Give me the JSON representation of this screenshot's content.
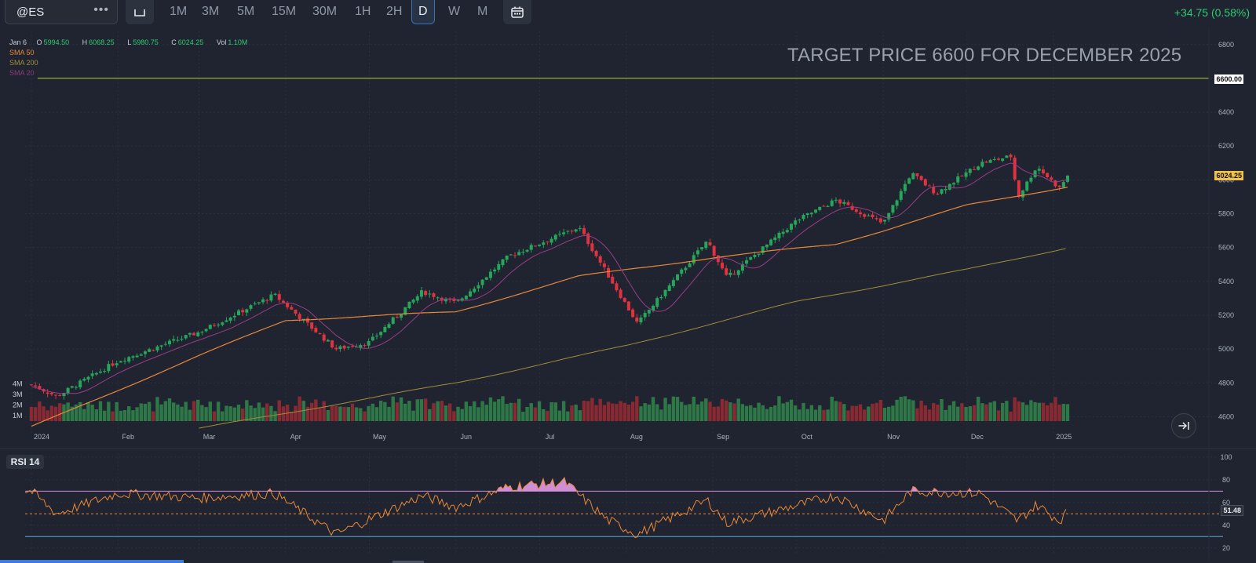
{
  "toolbar": {
    "symbol": "@ES",
    "more": "•••",
    "timeframes": [
      "1M",
      "3M",
      "5M",
      "15M",
      "30M",
      "1H",
      "2H",
      "D",
      "W",
      "M"
    ],
    "active_timeframe": "D",
    "change": "+34.75 (0.58%)"
  },
  "legend": {
    "date": "Jan 6",
    "open_label": "O",
    "open": "5994.50",
    "high_label": "H",
    "high": "6068.25",
    "low_label": "L",
    "low": "5980.75",
    "close_label": "C",
    "close": "6024.25",
    "vol_label": "Vol",
    "vol": "1.10M",
    "studies": [
      {
        "name": "SMA 50",
        "color": "#e8883a"
      },
      {
        "name": "SMA 200",
        "color": "#a38c3a"
      },
      {
        "name": "SMA 20",
        "color": "#8e3a7a"
      }
    ]
  },
  "annotation": "TARGET PRICE  6600 FOR DECEMBER 2025",
  "price_tags": {
    "target": "6600.00",
    "last": "6024.25",
    "rsi": "51.48"
  },
  "rsi_label": "RSI 14",
  "colors": {
    "up": "#26a65b",
    "down": "#e0323f",
    "sma20": "#9a3d88",
    "sma50": "#e8883a",
    "sma200": "#a38c3a",
    "target_line": "#b5d334",
    "rsi_line": "#e8883a",
    "rsi_upper": "#d48be0",
    "rsi_lower": "#55a8d8",
    "rsi_overbought_fill": "#e39be8"
  },
  "chart_data": {
    "type": "candlestick",
    "symbol": "@ES",
    "interval": "D",
    "y_ticks": [
      4600,
      4800,
      5000,
      5200,
      5400,
      5600,
      5800,
      6000,
      6200,
      6400,
      6600,
      6800
    ],
    "y_range": [
      4500,
      6850
    ],
    "x_labels": [
      "2024",
      "Feb",
      "Mar",
      "Apr",
      "May",
      "Jun",
      "Jul",
      "Aug",
      "Sep",
      "Oct",
      "Nov",
      "Dec",
      "2025"
    ],
    "volume_ticks": [
      "1M",
      "2M",
      "3M",
      "4M"
    ],
    "target_price": 6600,
    "last_close": 6024.25,
    "price_path": [
      {
        "date": "2024-01-01",
        "close": 4790
      },
      {
        "date": "2024-01-10",
        "close": 4720
      },
      {
        "date": "2024-02-01",
        "close": 4930
      },
      {
        "date": "2024-03-01",
        "close": 5100
      },
      {
        "date": "2024-03-28",
        "close": 5320
      },
      {
        "date": "2024-04-19",
        "close": 5000
      },
      {
        "date": "2024-05-01",
        "close": 5040
      },
      {
        "date": "2024-05-20",
        "close": 5340
      },
      {
        "date": "2024-06-01",
        "close": 5270
      },
      {
        "date": "2024-06-20",
        "close": 5550
      },
      {
        "date": "2024-07-15",
        "close": 5720
      },
      {
        "date": "2024-08-05",
        "close": 5150
      },
      {
        "date": "2024-08-30",
        "close": 5640
      },
      {
        "date": "2024-09-06",
        "close": 5420
      },
      {
        "date": "2024-10-01",
        "close": 5760
      },
      {
        "date": "2024-10-15",
        "close": 5880
      },
      {
        "date": "2024-11-01",
        "close": 5740
      },
      {
        "date": "2024-11-11",
        "close": 6040
      },
      {
        "date": "2024-11-20",
        "close": 5920
      },
      {
        "date": "2024-12-06",
        "close": 6100
      },
      {
        "date": "2024-12-17",
        "close": 6140
      },
      {
        "date": "2024-12-19",
        "close": 5890
      },
      {
        "date": "2024-12-26",
        "close": 6080
      },
      {
        "date": "2025-01-03",
        "close": 5950
      },
      {
        "date": "2025-01-06",
        "close": 6024.25
      }
    ],
    "sma50_path": [
      {
        "date": "2024-01-01",
        "value": 4540
      },
      {
        "date": "2024-03-01",
        "value": 4960
      },
      {
        "date": "2024-04-01",
        "value": 5170
      },
      {
        "date": "2024-06-01",
        "value": 5220
      },
      {
        "date": "2024-07-15",
        "value": 5430
      },
      {
        "date": "2024-09-01",
        "value": 5540
      },
      {
        "date": "2024-10-15",
        "value": 5620
      },
      {
        "date": "2024-11-01",
        "value": 5700
      },
      {
        "date": "2024-12-01",
        "value": 5850
      },
      {
        "date": "2025-01-06",
        "value": 5960
      }
    ],
    "sma200_path": [
      {
        "date": "2024-03-01",
        "value": 4530
      },
      {
        "date": "2024-06-01",
        "value": 4800
      },
      {
        "date": "2024-08-01",
        "value": 5020
      },
      {
        "date": "2024-10-01",
        "value": 5280
      },
      {
        "date": "2024-12-01",
        "value": 5470
      },
      {
        "date": "2025-01-06",
        "value": 5600
      }
    ],
    "rsi": {
      "period": 14,
      "y_ticks": [
        20,
        40,
        60,
        80,
        100
      ],
      "y_range": [
        15,
        102
      ],
      "overbought": 70,
      "oversold": 30,
      "midline": 50,
      "last": 51.48,
      "path": [
        {
          "date": "2024-01-01",
          "value": 70
        },
        {
          "date": "2024-01-10",
          "value": 50
        },
        {
          "date": "2024-02-01",
          "value": 68
        },
        {
          "date": "2024-03-01",
          "value": 64
        },
        {
          "date": "2024-03-28",
          "value": 68
        },
        {
          "date": "2024-04-19",
          "value": 32
        },
        {
          "date": "2024-05-20",
          "value": 66
        },
        {
          "date": "2024-06-01",
          "value": 56
        },
        {
          "date": "2024-06-20",
          "value": 74
        },
        {
          "date": "2024-07-10",
          "value": 78
        },
        {
          "date": "2024-07-25",
          "value": 45
        },
        {
          "date": "2024-08-05",
          "value": 32
        },
        {
          "date": "2024-08-30",
          "value": 62
        },
        {
          "date": "2024-09-06",
          "value": 42
        },
        {
          "date": "2024-10-15",
          "value": 66
        },
        {
          "date": "2024-11-01",
          "value": 44
        },
        {
          "date": "2024-11-11",
          "value": 70
        },
        {
          "date": "2024-12-06",
          "value": 68
        },
        {
          "date": "2024-12-19",
          "value": 44
        },
        {
          "date": "2024-12-26",
          "value": 58
        },
        {
          "date": "2025-01-03",
          "value": 44
        },
        {
          "date": "2025-01-06",
          "value": 51.48
        }
      ]
    }
  }
}
